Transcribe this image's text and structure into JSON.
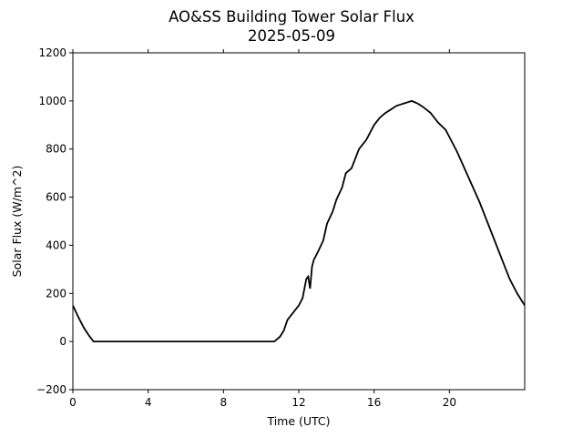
{
  "chart_data": {
    "type": "line",
    "title": "AO&SS Building Tower Solar Flux",
    "subtitle": "2025-05-09",
    "xlabel": "Time (UTC)",
    "ylabel": "Solar Flux (W/m^2)",
    "xlim": [
      0,
      24
    ],
    "ylim": [
      -200,
      1200
    ],
    "xticks": [
      0,
      4,
      8,
      12,
      16,
      20
    ],
    "yticks": [
      -200,
      0,
      200,
      400,
      600,
      800,
      1000,
      1200
    ],
    "xtick_labels": [
      "0",
      "4",
      "8",
      "12",
      "16",
      "20"
    ],
    "ytick_labels": [
      "−200",
      "0",
      "200",
      "400",
      "600",
      "800",
      "1000",
      "1200"
    ],
    "grid": false,
    "line_color": "#000000",
    "series": [
      {
        "x": [
          0,
          0.3,
          0.6,
          0.9,
          1.1,
          1.5,
          4,
          8,
          10.5,
          10.7,
          11.0,
          11.2,
          11.4,
          11.7,
          12.0,
          12.2,
          12.4,
          12.5,
          12.6,
          12.7,
          12.8,
          13.0,
          13.3,
          13.5,
          13.8,
          14.0,
          14.3,
          14.5,
          14.8,
          15.0,
          15.2,
          15.4,
          15.6,
          15.8,
          16.0,
          16.3,
          16.6,
          16.8,
          17.0,
          17.2,
          17.4,
          17.6,
          17.8,
          18.0,
          18.3,
          18.6,
          19.0,
          19.4,
          19.8,
          20.0,
          20.4,
          20.8,
          21.2,
          21.6,
          22.0,
          22.4,
          22.8,
          23.2,
          23.6,
          24.0
        ],
        "y": [
          150,
          100,
          55,
          20,
          0,
          0,
          0,
          0,
          0,
          0,
          20,
          45,
          90,
          120,
          150,
          180,
          260,
          270,
          220,
          310,
          340,
          370,
          420,
          490,
          540,
          590,
          640,
          700,
          720,
          760,
          800,
          820,
          840,
          870,
          900,
          930,
          950,
          960,
          970,
          980,
          985,
          990,
          995,
          1000,
          990,
          975,
          950,
          910,
          880,
          850,
          790,
          720,
          650,
          580,
          500,
          420,
          340,
          260,
          200,
          150
        ]
      }
    ]
  }
}
